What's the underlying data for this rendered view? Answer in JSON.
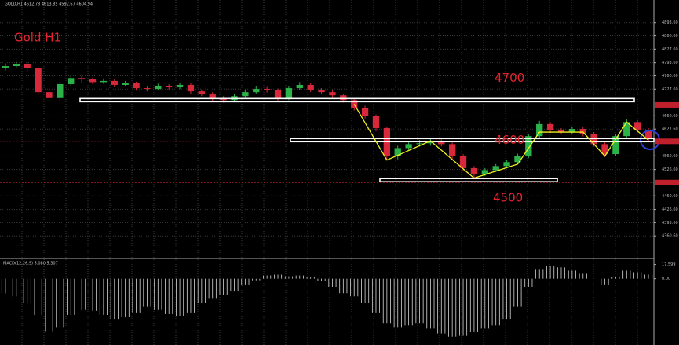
{
  "chart_data": {
    "type": "candlestick",
    "title": "Gold H1",
    "header": "GOLD,H1 4612.78 4613.85 4592.67 4604.94",
    "up_color": "#2bb34a",
    "down_color": "#d8283c",
    "grid": true,
    "ylim": [
      4306,
      4950
    ],
    "yticks": [
      {
        "value": 4893.6,
        "label": "4893.60"
      },
      {
        "value": 4860.6,
        "label": "4860.60"
      },
      {
        "value": 4827.6,
        "label": "4827.60"
      },
      {
        "value": 4793.6,
        "label": "4793.60"
      },
      {
        "value": 4760.6,
        "label": "4760.60"
      },
      {
        "value": 4727.6,
        "label": "4727.60"
      },
      {
        "value": 4660.6,
        "label": "4660.60"
      },
      {
        "value": 4627.6,
        "label": "4627.60"
      },
      {
        "value": 4560.6,
        "label": "4560.60"
      },
      {
        "value": 4526.6,
        "label": "4526.60"
      },
      {
        "value": 4460.6,
        "label": "4460.60"
      },
      {
        "value": 4426.6,
        "label": "4426.60"
      },
      {
        "value": 4393.6,
        "label": "4393.60"
      },
      {
        "value": 4360.6,
        "label": "4360.60"
      }
    ],
    "ohlc": [
      [
        4780,
        4792,
        4774,
        4785
      ],
      [
        4785,
        4796,
        4780,
        4790
      ],
      [
        4790,
        4795,
        4772,
        4780
      ],
      [
        4780,
        4784,
        4712,
        4720
      ],
      [
        4720,
        4730,
        4695,
        4705
      ],
      [
        4705,
        4746,
        4700,
        4740
      ],
      [
        4740,
        4762,
        4735,
        4755
      ],
      [
        4755,
        4760,
        4744,
        4752
      ],
      [
        4752,
        4756,
        4740,
        4745
      ],
      [
        4745,
        4754,
        4741,
        4748
      ],
      [
        4748,
        4752,
        4732,
        4738
      ],
      [
        4738,
        4748,
        4734,
        4742
      ],
      [
        4742,
        4746,
        4724,
        4730
      ],
      [
        4730,
        4736,
        4722,
        4728
      ],
      [
        4728,
        4741,
        4724,
        4735
      ],
      [
        4735,
        4740,
        4726,
        4732
      ],
      [
        4732,
        4744,
        4728,
        4738
      ],
      [
        4738,
        4742,
        4716,
        4722
      ],
      [
        4722,
        4727,
        4710,
        4715
      ],
      [
        4715,
        4720,
        4698,
        4705
      ],
      [
        4705,
        4710,
        4694,
        4700
      ],
      [
        4700,
        4716,
        4696,
        4710
      ],
      [
        4710,
        4726,
        4706,
        4720
      ],
      [
        4720,
        4735,
        4715,
        4728
      ],
      [
        4728,
        4733,
        4719,
        4725
      ],
      [
        4725,
        4729,
        4698,
        4705
      ],
      [
        4705,
        4736,
        4700,
        4730
      ],
      [
        4730,
        4745,
        4726,
        4738
      ],
      [
        4738,
        4742,
        4720,
        4725
      ],
      [
        4725,
        4730,
        4714,
        4720
      ],
      [
        4720,
        4724,
        4706,
        4712
      ],
      [
        4712,
        4716,
        4694,
        4700
      ],
      [
        4700,
        4704,
        4674,
        4680
      ],
      [
        4680,
        4686,
        4654,
        4660
      ],
      [
        4660,
        4664,
        4622,
        4630
      ],
      [
        4630,
        4634,
        4550,
        4560
      ],
      [
        4560,
        4586,
        4552,
        4580
      ],
      [
        4580,
        4596,
        4574,
        4590
      ],
      [
        4590,
        4600,
        4584,
        4592
      ],
      [
        4592,
        4604,
        4586,
        4598
      ],
      [
        4598,
        4602,
        4584,
        4590
      ],
      [
        4590,
        4594,
        4552,
        4560
      ],
      [
        4560,
        4565,
        4522,
        4530
      ],
      [
        4530,
        4535,
        4506,
        4515
      ],
      [
        4515,
        4530,
        4510,
        4525
      ],
      [
        4525,
        4540,
        4520,
        4535
      ],
      [
        4535,
        4550,
        4530,
        4545
      ],
      [
        4545,
        4566,
        4540,
        4560
      ],
      [
        4560,
        4616,
        4555,
        4610
      ],
      [
        4610,
        4648,
        4605,
        4640
      ],
      [
        4640,
        4645,
        4618,
        4625
      ],
      [
        4625,
        4630,
        4614,
        4620
      ],
      [
        4620,
        4634,
        4615,
        4628
      ],
      [
        4628,
        4632,
        4609,
        4615
      ],
      [
        4615,
        4620,
        4584,
        4590
      ],
      [
        4590,
        4594,
        4558,
        4565
      ],
      [
        4565,
        4615,
        4560,
        4610
      ],
      [
        4610,
        4652,
        4605,
        4645
      ],
      [
        4645,
        4650,
        4620,
        4625
      ],
      [
        4625,
        4630,
        4598,
        4605
      ]
    ],
    "levels": [
      4700,
      4600,
      4500
    ],
    "hlines": [
      4688,
      4597,
      4494
    ],
    "zigzag": {
      "x": [
        32,
        35,
        39,
        43,
        47,
        49,
        53,
        55,
        57,
        59
      ],
      "y": [
        4690,
        4550,
        4598,
        4505,
        4540,
        4620,
        4620,
        4560,
        4645,
        4600
      ]
    },
    "macd": {
      "type": "bar",
      "label": "MACD(12,26,9) 5.080 5.307",
      "color": "#d8d8d8",
      "ylim": [
        -82,
        24
      ],
      "yticks": [
        {
          "value": 17.599,
          "label": "17.599"
        },
        {
          "value": 0,
          "label": "0.00"
        }
      ],
      "values": [
        -18,
        -22,
        -30,
        -45,
        -65,
        -60,
        -45,
        -38,
        -40,
        -45,
        -50,
        -48,
        -42,
        -35,
        -38,
        -44,
        -46,
        -42,
        -30,
        -24,
        -20,
        -15,
        -8,
        -2,
        4,
        5,
        3,
        4,
        2,
        -3,
        -10,
        -18,
        -22,
        -30,
        -42,
        -55,
        -60,
        -58,
        -55,
        -62,
        -68,
        -72,
        -70,
        -66,
        -62,
        -58,
        -50,
        -35,
        -10,
        12,
        16,
        14,
        10,
        6,
        0,
        -8,
        2,
        10,
        8,
        5
      ]
    }
  }
}
